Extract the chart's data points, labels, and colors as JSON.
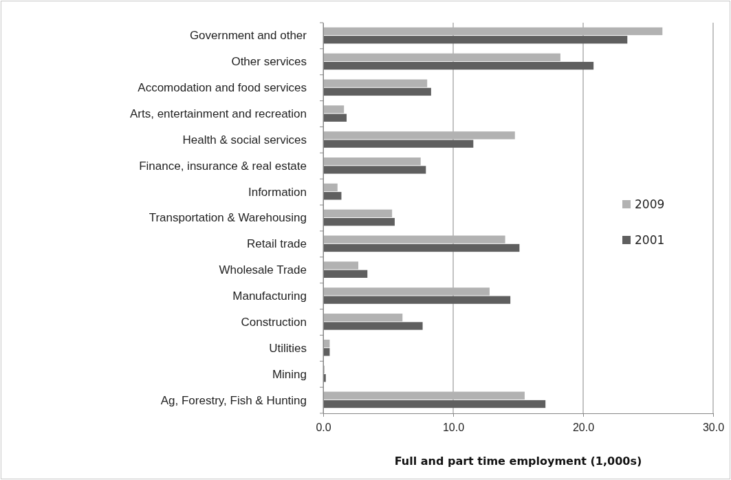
{
  "chart_data": {
    "type": "bar",
    "orientation": "horizontal",
    "xlabel": "Full and part time employment (1,000s)",
    "categories": [
      "Government and other",
      "Other services",
      "Accomodation and food services",
      "Arts, entertainment and recreation",
      "Health & social services",
      "Finance, insurance & real estate",
      "Information",
      "Transportation & Warehousing",
      "Retail trade",
      "Wholesale Trade",
      "Manufacturing",
      "Construction",
      "Utilities",
      "Mining",
      "Ag, Forestry, Fish & Hunting"
    ],
    "series": [
      {
        "name": "2009",
        "color": "#b2b2b2",
        "values": [
          26.1,
          18.25,
          8.0,
          1.6,
          14.75,
          7.5,
          1.1,
          5.3,
          14.0,
          2.7,
          12.8,
          6.1,
          0.5,
          0.1,
          15.5
        ]
      },
      {
        "name": "2001",
        "color": "#5f5f5f",
        "values": [
          23.4,
          20.8,
          8.3,
          1.8,
          11.55,
          7.9,
          1.4,
          5.5,
          15.1,
          3.4,
          14.4,
          7.65,
          0.5,
          0.2,
          17.1
        ]
      }
    ],
    "xlim": [
      0,
      30
    ],
    "xticks": [
      {
        "value": 0,
        "label": "0.0"
      },
      {
        "value": 10,
        "label": "10.0"
      },
      {
        "value": 20,
        "label": "20.0"
      },
      {
        "value": 30,
        "label": "30.0"
      }
    ],
    "grid": "x",
    "legend": "right"
  }
}
